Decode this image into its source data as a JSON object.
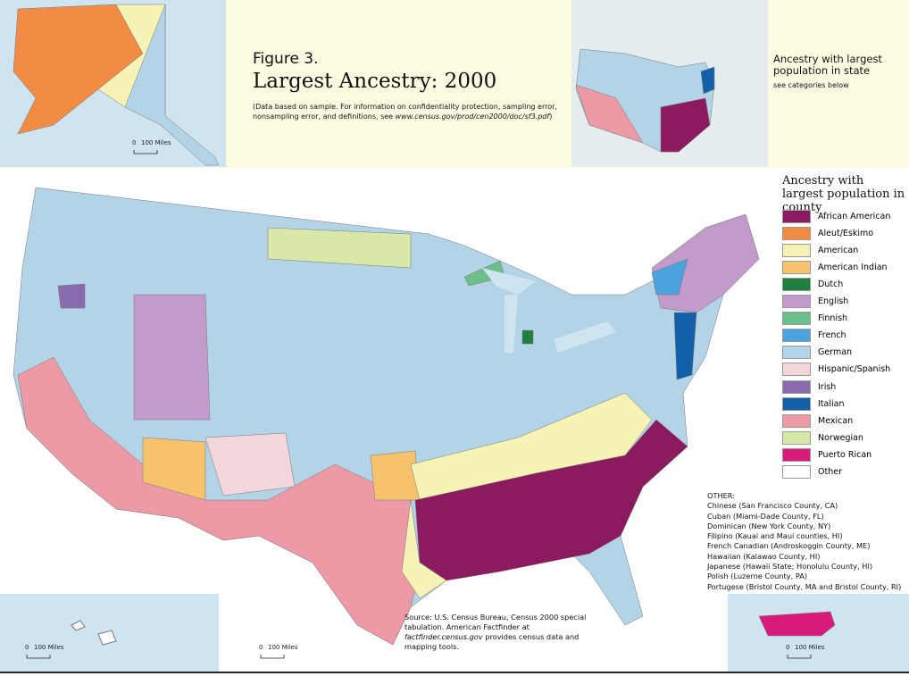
{
  "header": {
    "figure_label": "Figure 3.",
    "title": "Largest Ancestry: 2000",
    "note": "(Data based on sample. For information on confidentiality protection, sampling error, nonsampling error, and definitions, see",
    "note_url": "www.census.gov/prod/cen2000/doc/sf3.pdf",
    "note_end": ")"
  },
  "state_inset": {
    "title": "Ancestry with largest population in state",
    "subtitle": "see categories below"
  },
  "legend": {
    "title": "Ancestry with largest population in county",
    "items": [
      {
        "label": "African American",
        "color": "#8b1a5e"
      },
      {
        "label": "Aleut/Eskimo",
        "color": "#f28c45"
      },
      {
        "label": "American",
        "color": "#f7f3b5"
      },
      {
        "label": "American Indian",
        "color": "#f6c26e"
      },
      {
        "label": "Dutch",
        "color": "#1e7f3e"
      },
      {
        "label": "English",
        "color": "#c39bcb"
      },
      {
        "label": "Finnish",
        "color": "#6abf8a"
      },
      {
        "label": "French",
        "color": "#4aa3dd"
      },
      {
        "label": "German",
        "color": "#b3d4e6"
      },
      {
        "label": "Hispanic/Spanish",
        "color": "#f2d6d9"
      },
      {
        "label": "Irish",
        "color": "#8a6bb0"
      },
      {
        "label": "Italian",
        "color": "#1460a8"
      },
      {
        "label": "Mexican",
        "color": "#ec9aa6"
      },
      {
        "label": "Norwegian",
        "color": "#d8e8a8"
      },
      {
        "label": "Puerto Rican",
        "color": "#d81b7a"
      },
      {
        "label": "Other",
        "color": "#ffffff"
      }
    ]
  },
  "other": {
    "heading": "OTHER:",
    "items": [
      "Chinese (San Francisco County, CA)",
      "Cuban (Miami-Dade County, FL)",
      "Dominican (New York County, NY)",
      "Filipino (Kauai and Maui counties, HI)",
      "French Canadian (Androskoggin County, ME)",
      "Hawaiian (Kalawao County, HI)",
      "Japanese (Hawaii State; Honolulu County, HI)",
      "Polish (Luzerne County, PA)",
      "Portugese (Bristol County, MA and Bristol County, RI)"
    ]
  },
  "source": {
    "text": "Source: U.S. Census Bureau, Census 2000 special tabulation. American Factfinder at",
    "url": "factfinder.census.gov",
    "end": "provides census data and mapping tools."
  },
  "scale_bars": [
    {
      "zero": "0",
      "label": "100 Miles"
    },
    {
      "zero": "0",
      "label": "100 Miles"
    },
    {
      "zero": "0",
      "label": "100 Miles"
    },
    {
      "zero": "0",
      "label": "100 Miles"
    }
  ]
}
